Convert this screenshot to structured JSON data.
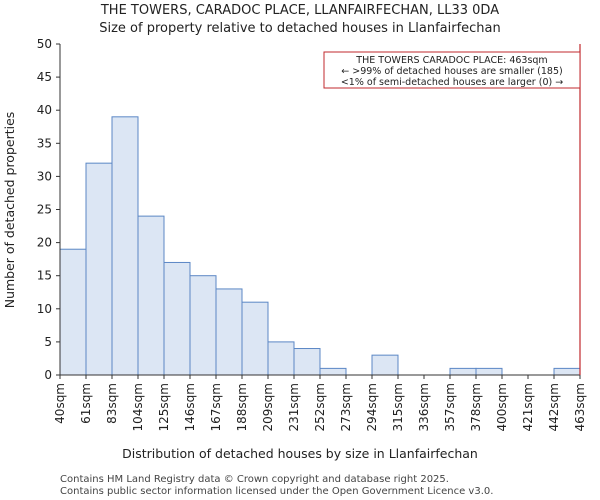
{
  "chart_data": {
    "type": "bar",
    "title": "THE TOWERS, CARADOC PLACE, LLANFAIRFECHAN, LL33 0DA",
    "subtitle": "Size of property relative to detached houses in Llanfairfechan",
    "xlabel": "Distribution of detached houses by size in Llanfairfechan",
    "ylabel": "Number of detached properties",
    "bin_edges": [
      "40sqm",
      "61sqm",
      "83sqm",
      "104sqm",
      "125sqm",
      "146sqm",
      "167sqm",
      "188sqm",
      "209sqm",
      "231sqm",
      "252sqm",
      "273sqm",
      "294sqm",
      "315sqm",
      "336sqm",
      "357sqm",
      "378sqm",
      "400sqm",
      "421sqm",
      "442sqm",
      "463sqm"
    ],
    "values": [
      19,
      32,
      39,
      24,
      17,
      15,
      13,
      11,
      5,
      4,
      1,
      0,
      3,
      0,
      0,
      1,
      1,
      0,
      0,
      1
    ],
    "ylim": [
      0,
      50
    ],
    "yticks": [
      0,
      5,
      10,
      15,
      20,
      25,
      30,
      35,
      40,
      45,
      50
    ],
    "marker_bin_index": 20,
    "annotation": {
      "lines": [
        "THE TOWERS CARADOC PLACE: 463sqm",
        "← >99% of detached houses are smaller (185)",
        "<1% of semi-detached houses are larger (0) →"
      ]
    },
    "colors": {
      "bar_fill": "#dce6f4",
      "bar_edge": "#5b87c5",
      "marker": "#c0282d",
      "axis": "#333333"
    },
    "footer": [
      "Contains HM Land Registry data © Crown copyright and database right 2025.",
      "Contains public sector information licensed under the Open Government Licence v3.0."
    ]
  }
}
